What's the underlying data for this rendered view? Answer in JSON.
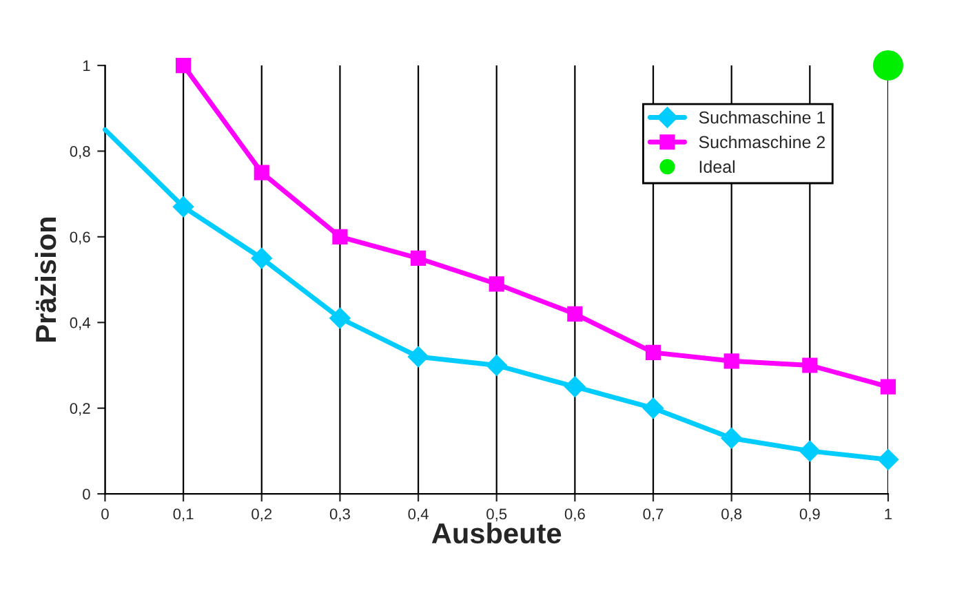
{
  "chart_data": {
    "type": "line",
    "xlabel": "Ausbeute",
    "ylabel": "Präzision",
    "xlim": [
      0,
      1
    ],
    "ylim": [
      0,
      1
    ],
    "xticks": [
      {
        "value": 0,
        "label": "0"
      },
      {
        "value": 0.1,
        "label": "0,1"
      },
      {
        "value": 0.2,
        "label": "0,2"
      },
      {
        "value": 0.3,
        "label": "0,3"
      },
      {
        "value": 0.4,
        "label": "0,4"
      },
      {
        "value": 0.5,
        "label": "0,5"
      },
      {
        "value": 0.6,
        "label": "0,6"
      },
      {
        "value": 0.7,
        "label": "0,7"
      },
      {
        "value": 0.8,
        "label": "0,8"
      },
      {
        "value": 0.9,
        "label": "0,9"
      },
      {
        "value": 1,
        "label": "1"
      }
    ],
    "yticks": [
      {
        "value": 0,
        "label": "0"
      },
      {
        "value": 0.2,
        "label": "0,2"
      },
      {
        "value": 0.4,
        "label": "0,4"
      },
      {
        "value": 0.6,
        "label": "0,6"
      },
      {
        "value": 0.8,
        "label": "0,8"
      },
      {
        "value": 1,
        "label": "1"
      }
    ],
    "grid": "x",
    "legend": "top right",
    "series": [
      {
        "color": "#00ccff",
        "x": [
          0,
          0.1
        ],
        "values": [
          0.85,
          0.67
        ]
      },
      {
        "name": "Suchmaschine 1",
        "color": "#00ccff",
        "marker": "diamond",
        "x": [
          0.1,
          0.2,
          0.3,
          0.4,
          0.5,
          0.6,
          0.7,
          0.8,
          0.9,
          1
        ],
        "values": [
          0.67,
          0.55,
          0.41,
          0.32,
          0.3,
          0.25,
          0.2,
          0.13,
          0.1,
          0.08
        ]
      },
      {
        "name": "Suchmaschine 2",
        "color": "#ff00ff",
        "marker": "square",
        "x": [
          0.1,
          0.2,
          0.3,
          0.4,
          0.5,
          0.6,
          0.7,
          0.8,
          0.9,
          1
        ],
        "values": [
          1,
          0.75,
          0.6,
          0.55,
          0.49,
          0.42,
          0.33,
          0.31,
          0.3,
          0.25
        ]
      },
      {
        "name": "Ideal",
        "type": "scatter",
        "color": "#00ee00",
        "marker": "circle",
        "x": [
          1
        ],
        "values": [
          1
        ]
      }
    ]
  }
}
